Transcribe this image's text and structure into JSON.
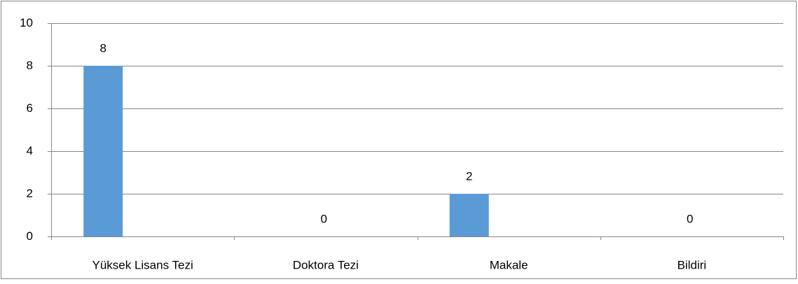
{
  "chart_data": {
    "type": "bar",
    "categories": [
      "Yüksek Lisans Tezi",
      "Doktora Tezi",
      "Makale",
      "Bildiri"
    ],
    "values": [
      8,
      0,
      2,
      0
    ],
    "color": "#5b9bd5",
    "ylim": [
      0,
      10
    ],
    "yticks": [
      0,
      2,
      4,
      6,
      8,
      10
    ],
    "grid": true
  }
}
